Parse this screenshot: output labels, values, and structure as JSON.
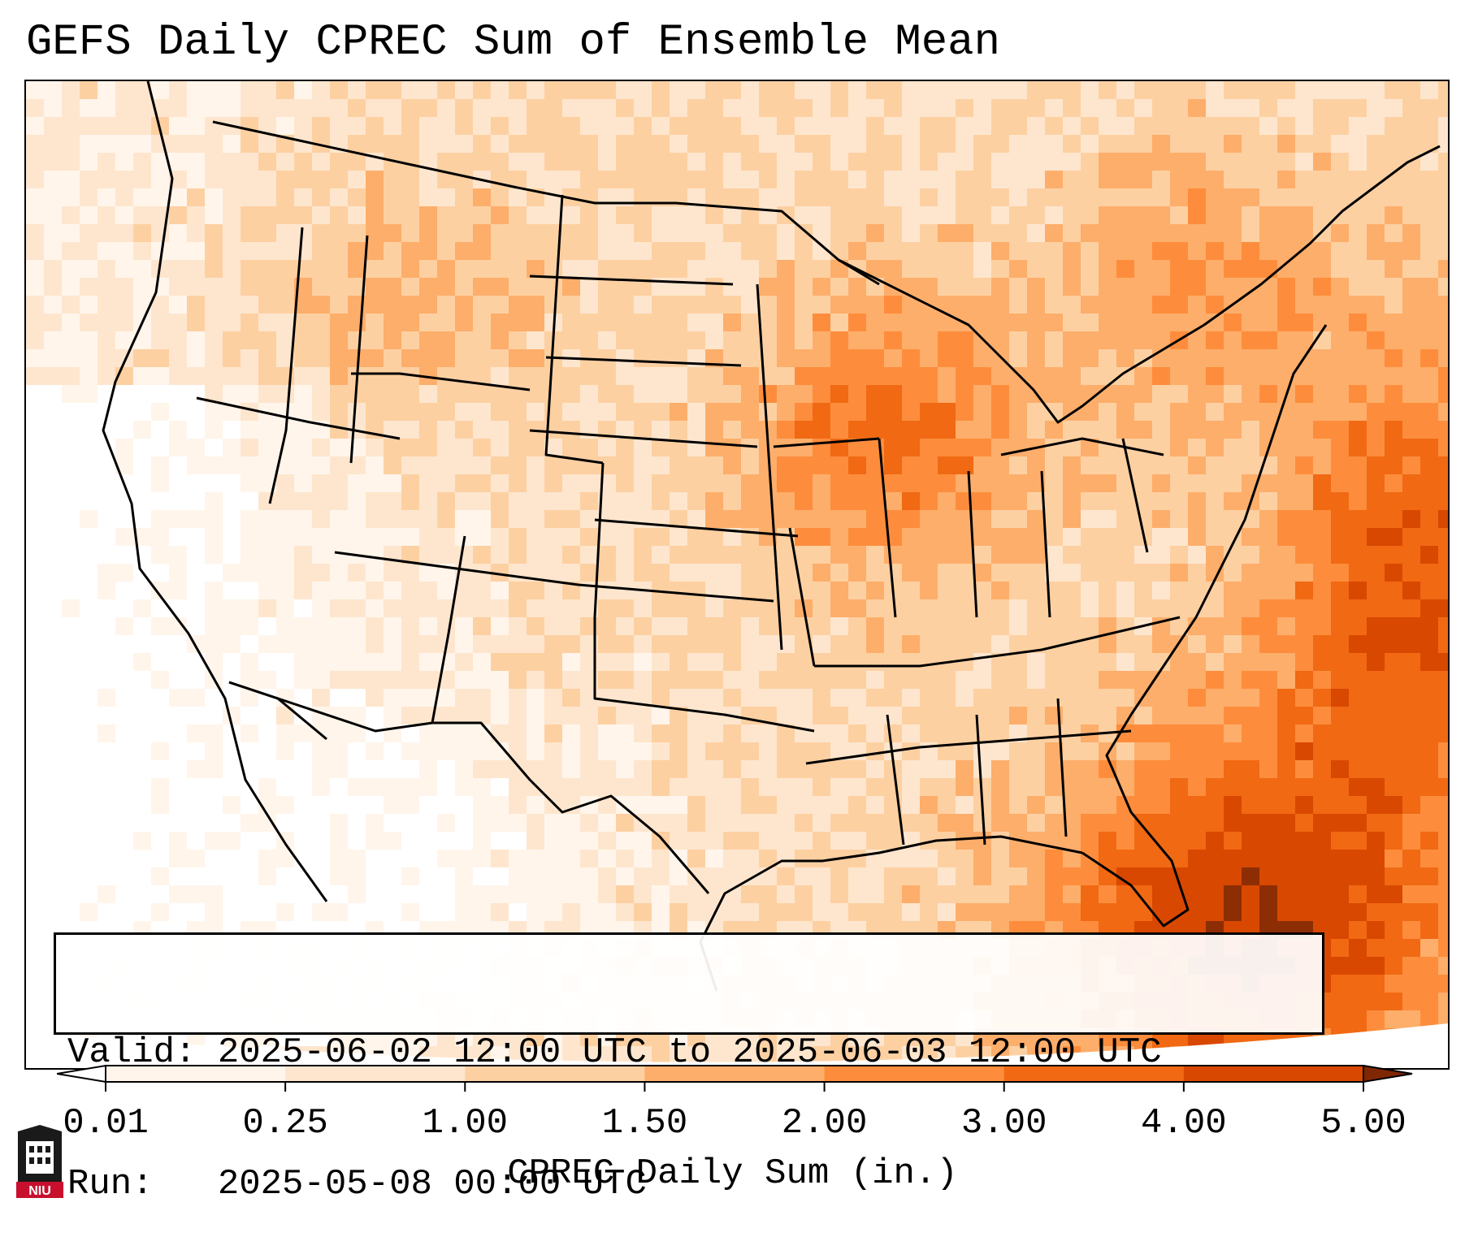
{
  "title": "GEFS Daily CPREC Sum of Ensemble Mean",
  "info": {
    "valid_line": "Valid: 2025-06-02 12:00 UTC to 2025-06-03 12:00 UTC",
    "run_line": "Run:   2025-05-08 00:00 UTC"
  },
  "colorbar": {
    "title": "CPREC Daily Sum (in.)",
    "ticks": [
      "0.01",
      "0.25",
      "1.00",
      "1.50",
      "2.00",
      "3.00",
      "4.00",
      "5.00"
    ],
    "colors": [
      "#fff5eb",
      "#fee6ce",
      "#fdd0a2",
      "#fdae6b",
      "#fd8d3c",
      "#f16913",
      "#d94801",
      "#8c2d04"
    ],
    "under_color": "#ffffff",
    "over_color": "#7f2704"
  },
  "logo": {
    "text": "NIU",
    "name": "niu-logo"
  },
  "map": {
    "region": "Continental United States",
    "variable": "Convective precipitation daily sum",
    "heaviest_area": "Southeast coast, Florida and western Atlantic"
  }
}
